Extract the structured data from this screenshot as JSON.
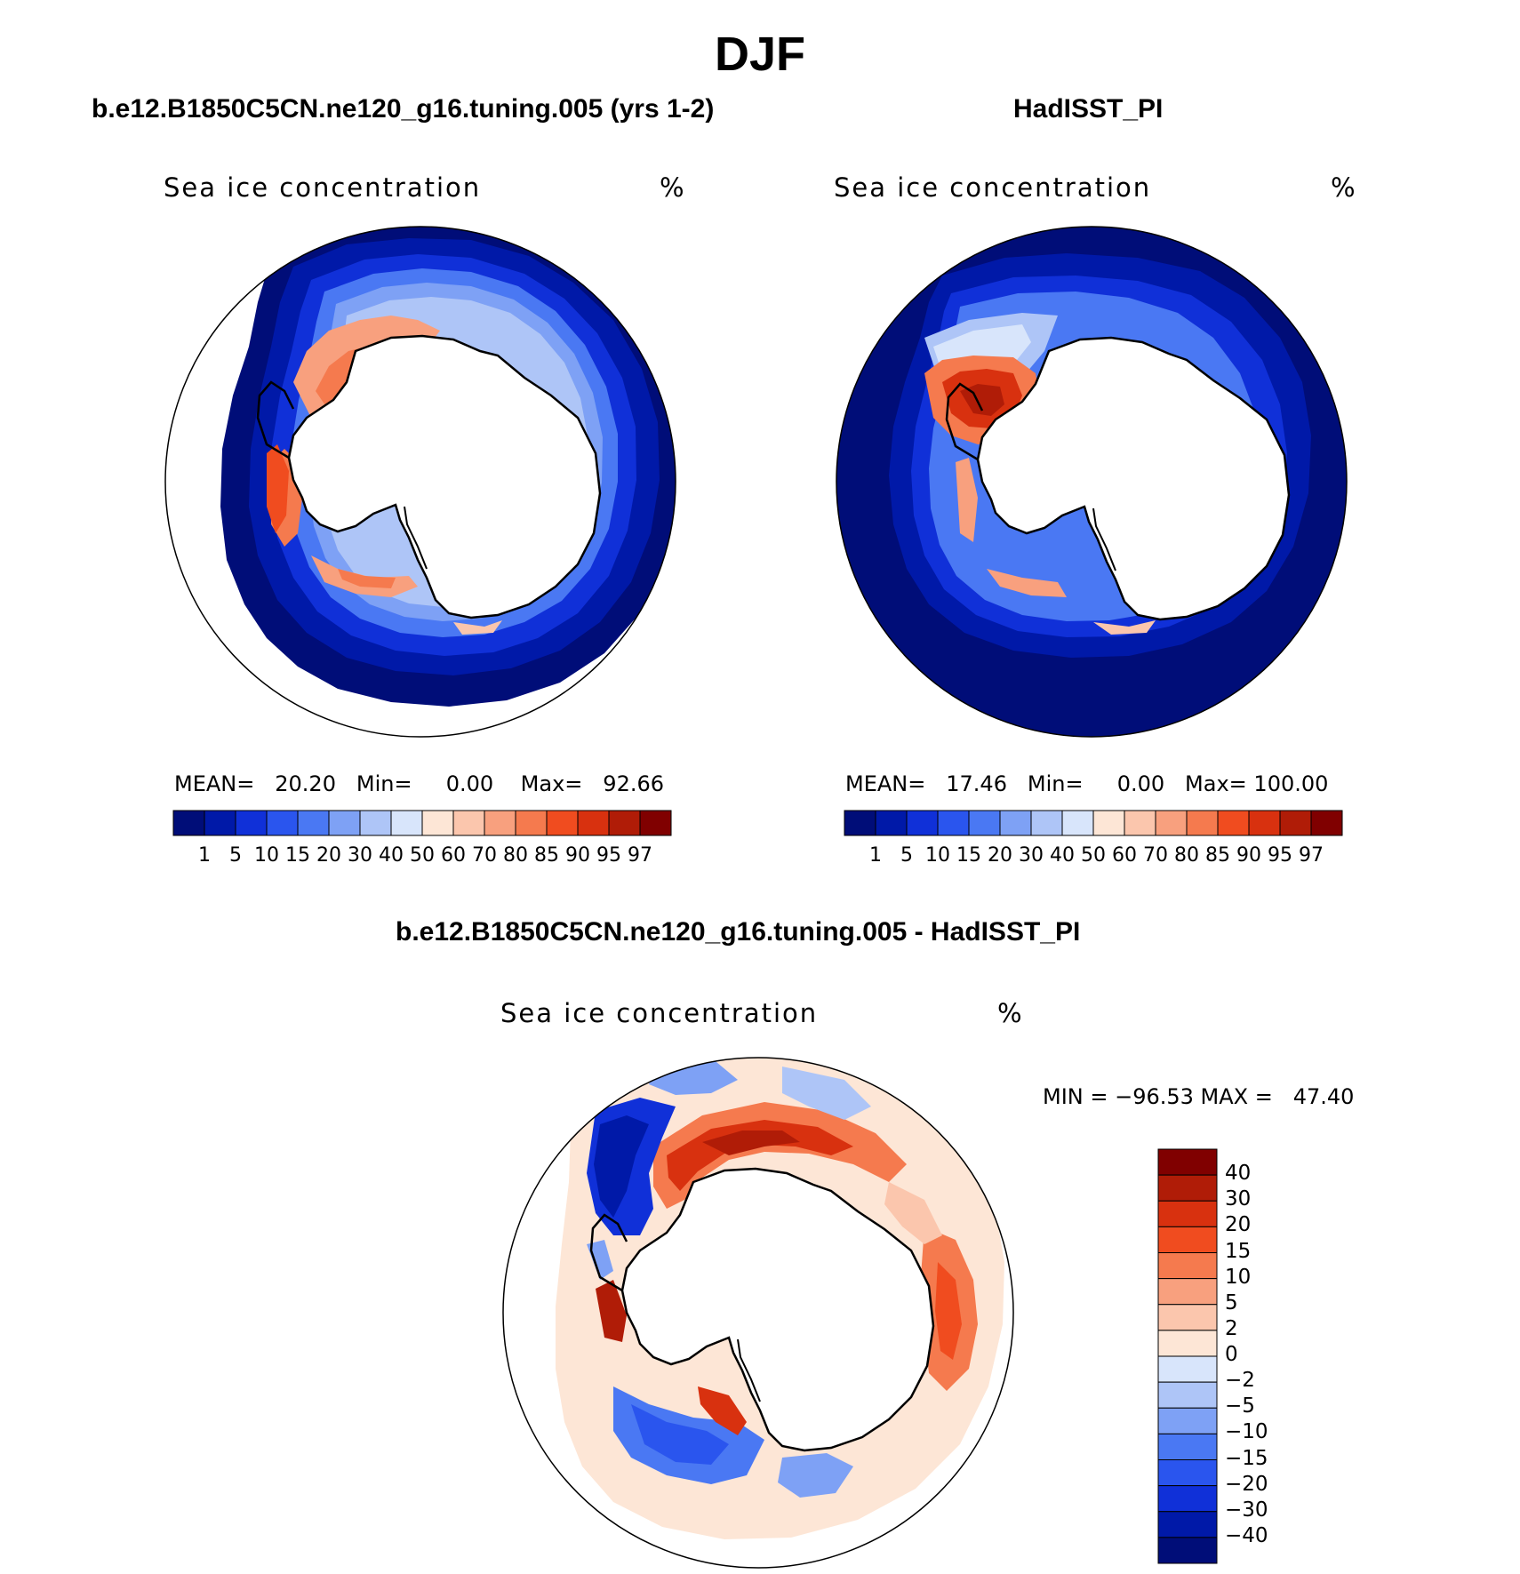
{
  "title": "DJF",
  "panels": [
    {
      "title": "b.e12.B1850C5CN.ne120_g16.tuning.005 (yrs 1-2)",
      "field_label": "Sea ice concentration",
      "units": "%",
      "stats": {
        "mean_label": "MEAN=",
        "mean": "20.20",
        "min_label": "Min=",
        "min": "0.00",
        "max_label": "Max=",
        "max": "92.66"
      }
    },
    {
      "title": "HadISST_PI",
      "field_label": "Sea ice concentration",
      "units": "%",
      "stats": {
        "mean_label": "MEAN=",
        "mean": "17.46",
        "min_label": "Min=",
        "min": "0.00",
        "max_label": "Max=",
        "max": "100.00"
      }
    },
    {
      "title": "b.e12.B1850C5CN.ne120_g16.tuning.005 - HadISST_PI",
      "field_label": "Sea ice concentration",
      "units": "%",
      "minmax_text": "MIN = −96.53 MAX =   47.40"
    }
  ],
  "concentration_colorbar": {
    "levels": [
      "1",
      "5",
      "10",
      "15",
      "20",
      "30",
      "40",
      "50",
      "60",
      "70",
      "80",
      "85",
      "90",
      "95",
      "97"
    ],
    "colors": [
      "#000d78",
      "#0019a8",
      "#1030d8",
      "#2a55ee",
      "#4a78f3",
      "#7ea1f5",
      "#aec5f7",
      "#d8e5fb",
      "#fde6d6",
      "#fbc6ad",
      "#f8a07e",
      "#f57a4e",
      "#f04c1f",
      "#d8310f",
      "#b01c07",
      "#800000"
    ]
  },
  "difference_colorbar": {
    "levels": [
      "40",
      "30",
      "20",
      "15",
      "10",
      "5",
      "2",
      "0",
      "−2",
      "−5",
      "−10",
      "−15",
      "−20",
      "−30",
      "−40"
    ],
    "colors": [
      "#800000",
      "#b01c07",
      "#d8310f",
      "#f04c1f",
      "#f57a4e",
      "#f8a07e",
      "#fbc6ad",
      "#fde6d6",
      "#d8e5fb",
      "#aec5f7",
      "#7ea1f5",
      "#4a78f3",
      "#2a55ee",
      "#1030d8",
      "#0019a8",
      "#000d78"
    ]
  }
}
